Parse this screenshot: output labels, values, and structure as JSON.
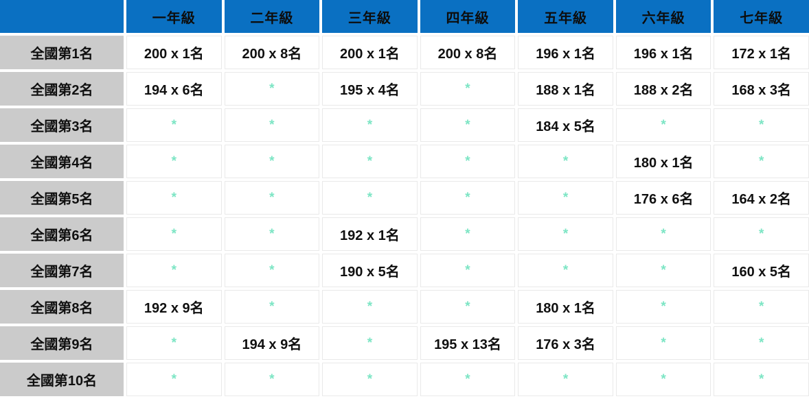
{
  "chart_data": {
    "type": "table",
    "title": "",
    "corner_label": "",
    "columns": [
      "一年級",
      "二年級",
      "三年級",
      "四年級",
      "五年級",
      "六年級",
      "七年級"
    ],
    "row_labels": [
      "全國第1名",
      "全國第2名",
      "全國第3名",
      "全國第4名",
      "全國第5名",
      "全國第6名",
      "全國第7名",
      "全國第8名",
      "全國第9名",
      "全國第10名"
    ],
    "placeholder": "*",
    "rows": [
      {
        "label": "全國第1名",
        "values": [
          "200 x 1名",
          "200 x 8名",
          "200 x 1名",
          "200 x 8名",
          "196 x 1名",
          "196 x 1名",
          "172 x 1名"
        ]
      },
      {
        "label": "全國第2名",
        "values": [
          "194 x 6名",
          "*",
          "195 x 4名",
          "*",
          "188 x 1名",
          "188 x 2名",
          "168 x 3名"
        ]
      },
      {
        "label": "全國第3名",
        "values": [
          "*",
          "*",
          "*",
          "*",
          "184 x 5名",
          "*",
          "*"
        ]
      },
      {
        "label": "全國第4名",
        "values": [
          "*",
          "*",
          "*",
          "*",
          "*",
          "180 x 1名",
          "*"
        ]
      },
      {
        "label": "全國第5名",
        "values": [
          "*",
          "*",
          "*",
          "*",
          "*",
          "176 x 6名",
          "164 x 2名"
        ]
      },
      {
        "label": "全國第6名",
        "values": [
          "*",
          "*",
          "192 x 1名",
          "*",
          "*",
          "*",
          "*"
        ]
      },
      {
        "label": "全國第7名",
        "values": [
          "*",
          "*",
          "190 x 5名",
          "*",
          "*",
          "*",
          "160 x 5名"
        ]
      },
      {
        "label": "全國第8名",
        "values": [
          "192 x 9名",
          "*",
          "*",
          "*",
          "180 x 1名",
          "*",
          "*"
        ]
      },
      {
        "label": "全國第9名",
        "values": [
          "*",
          "194 x 9名",
          "*",
          "195 x 13名",
          "176 x 3名",
          "*",
          "*"
        ]
      },
      {
        "label": "全國第10名",
        "values": [
          "*",
          "*",
          "*",
          "*",
          "*",
          "*",
          "*"
        ]
      }
    ]
  },
  "colors": {
    "header_bg": "#0a70c2",
    "header_text": "#0d0d0d",
    "rowheader_bg": "#cbcbcb",
    "body_text": "#101010",
    "cell_border": "#e9e9e9",
    "star_color": "#7ce5c4",
    "gap_color": "#ffffff"
  }
}
